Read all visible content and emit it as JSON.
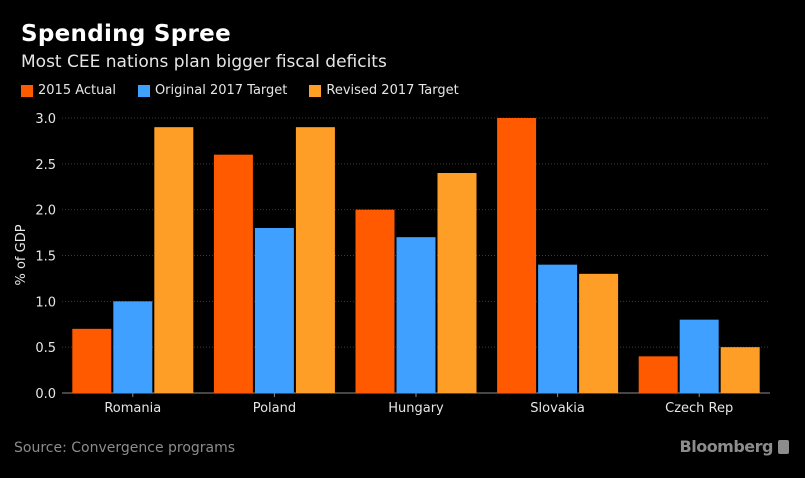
{
  "header": {
    "title": "Spending Spree",
    "subtitle": "Most CEE nations plan bigger fiscal deficits"
  },
  "footer": {
    "source": "Source: Convergence programs",
    "brand": "Bloomberg"
  },
  "chart_data": {
    "type": "bar",
    "title": "Spending Spree",
    "subtitle": "Most CEE nations plan bigger fiscal deficits",
    "xlabel": "",
    "ylabel": "% of GDP",
    "ylim": [
      0,
      3.0
    ],
    "yticks": [
      "0.0",
      "0.5",
      "1.0",
      "1.5",
      "2.0",
      "2.5",
      "3.0"
    ],
    "grid": true,
    "legend_position": "top-left",
    "categories": [
      "Romania",
      "Poland",
      "Hungary",
      "Slovakia",
      "Czech Rep"
    ],
    "series": [
      {
        "name": "2015 Actual",
        "color": "#ff5a00",
        "values": [
          0.7,
          2.6,
          2.0,
          3.0,
          0.4
        ]
      },
      {
        "name": "Original 2017 Target",
        "color": "#3fa0ff",
        "values": [
          1.0,
          1.8,
          1.7,
          1.4,
          0.8
        ]
      },
      {
        "name": "Revised 2017 Target",
        "color": "#ff9e26",
        "values": [
          2.9,
          2.9,
          2.4,
          1.3,
          0.5
        ]
      }
    ]
  }
}
